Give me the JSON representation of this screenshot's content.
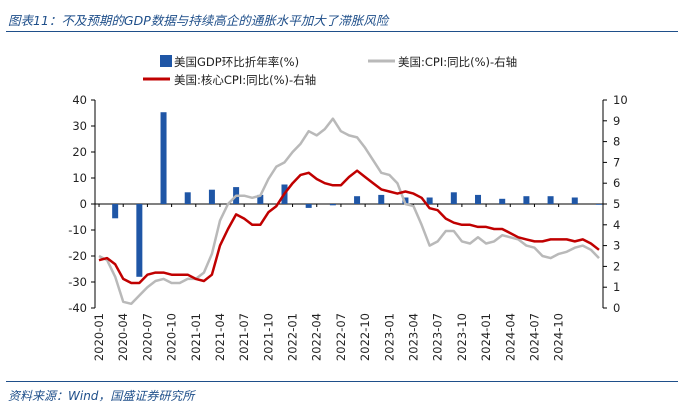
{
  "title": "图表11：不及预期的GDP数据与持续高企的通胀水平加大了滞胀风险",
  "source": "资料来源：Wind，国盛证券研究所",
  "chart_data": {
    "type": "bar+line",
    "legend_position": "top",
    "grid": false,
    "left_axis": {
      "ylim": [
        -40,
        40
      ],
      "ticks": [
        -40,
        -30,
        -20,
        -10,
        0,
        10,
        20,
        30,
        40
      ]
    },
    "right_axis": {
      "ylim": [
        0,
        10
      ],
      "ticks": [
        0,
        1,
        2,
        3,
        4,
        5,
        6,
        7,
        8,
        9,
        10
      ]
    },
    "x_tick_labels": [
      "2020-01",
      "2020-04",
      "2020-07",
      "2020-10",
      "2021-01",
      "2021-04",
      "2021-07",
      "2021-10",
      "2022-01",
      "2022-04",
      "2022-07",
      "2022-10",
      "2023-01",
      "2023-04",
      "2023-07",
      "2023-10",
      "2024-01",
      "2024-04",
      "2024-07",
      "2024-10"
    ],
    "months": [
      "2020-01",
      "2020-02",
      "2020-03",
      "2020-04",
      "2020-05",
      "2020-06",
      "2020-07",
      "2020-08",
      "2020-09",
      "2020-10",
      "2020-11",
      "2020-12",
      "2021-01",
      "2021-02",
      "2021-03",
      "2021-04",
      "2021-05",
      "2021-06",
      "2021-07",
      "2021-08",
      "2021-09",
      "2021-10",
      "2021-11",
      "2021-12",
      "2022-01",
      "2022-02",
      "2022-03",
      "2022-04",
      "2022-05",
      "2022-06",
      "2022-07",
      "2022-08",
      "2022-09",
      "2022-10",
      "2022-11",
      "2022-12",
      "2023-01",
      "2023-02",
      "2023-03",
      "2023-04",
      "2023-05",
      "2023-06",
      "2023-07",
      "2023-08",
      "2023-09",
      "2023-10",
      "2023-11",
      "2023-12",
      "2024-01",
      "2024-02",
      "2024-03",
      "2024-04",
      "2024-05",
      "2024-06",
      "2024-07",
      "2024-08",
      "2024-09",
      "2024-10",
      "2024-11",
      "2024-12",
      "2025-01",
      "2025-02",
      "2025-03"
    ],
    "series": [
      {
        "name": "美国GDP环比折年率(%)",
        "type": "bar",
        "axis": "left",
        "color": "#1f56a6",
        "x": [
          "2020-03",
          "2020-06",
          "2020-09",
          "2020-12",
          "2021-03",
          "2021-06",
          "2021-09",
          "2021-12",
          "2022-03",
          "2022-06",
          "2022-09",
          "2022-12",
          "2023-03",
          "2023-06",
          "2023-09",
          "2023-12",
          "2024-03",
          "2024-06",
          "2024-09",
          "2024-12",
          "2025-03"
        ],
        "values": [
          -5.5,
          -28.0,
          35.3,
          4.5,
          5.5,
          6.5,
          3.5,
          7.5,
          -1.5,
          -0.5,
          3.0,
          3.5,
          2.5,
          2.5,
          4.5,
          3.5,
          2.0,
          3.0,
          3.0,
          2.5,
          -0.3
        ]
      },
      {
        "name": "美国:CPI:同比(%)-右轴",
        "type": "line",
        "axis": "right",
        "color": "#b9b9b9",
        "values": [
          2.5,
          2.3,
          1.5,
          0.3,
          0.2,
          0.6,
          1.0,
          1.3,
          1.4,
          1.2,
          1.2,
          1.4,
          1.4,
          1.7,
          2.6,
          4.2,
          5.0,
          5.4,
          5.4,
          5.3,
          5.4,
          6.2,
          6.8,
          7.0,
          7.5,
          7.9,
          8.5,
          8.3,
          8.6,
          9.1,
          8.5,
          8.3,
          8.2,
          7.7,
          7.1,
          6.5,
          6.4,
          6.0,
          5.0,
          4.9,
          4.0,
          3.0,
          3.2,
          3.7,
          3.7,
          3.2,
          3.1,
          3.4,
          3.1,
          3.2,
          3.5,
          3.4,
          3.3,
          3.0,
          2.9,
          2.5,
          2.4,
          2.6,
          2.7,
          2.9,
          3.0,
          2.8,
          2.4
        ]
      },
      {
        "name": "美国:核心CPI:同比(%)-右轴",
        "type": "line",
        "axis": "right",
        "color": "#c00000",
        "values": [
          2.3,
          2.4,
          2.1,
          1.4,
          1.2,
          1.2,
          1.6,
          1.7,
          1.7,
          1.6,
          1.6,
          1.6,
          1.4,
          1.3,
          1.6,
          3.0,
          3.8,
          4.5,
          4.3,
          4.0,
          4.0,
          4.6,
          4.9,
          5.5,
          6.0,
          6.4,
          6.5,
          6.2,
          6.0,
          5.9,
          5.9,
          6.3,
          6.6,
          6.3,
          6.0,
          5.7,
          5.6,
          5.5,
          5.6,
          5.5,
          5.3,
          4.8,
          4.7,
          4.3,
          4.1,
          4.0,
          4.0,
          3.9,
          3.9,
          3.8,
          3.8,
          3.6,
          3.4,
          3.3,
          3.2,
          3.2,
          3.3,
          3.3,
          3.3,
          3.2,
          3.3,
          3.1,
          2.8
        ]
      }
    ]
  }
}
